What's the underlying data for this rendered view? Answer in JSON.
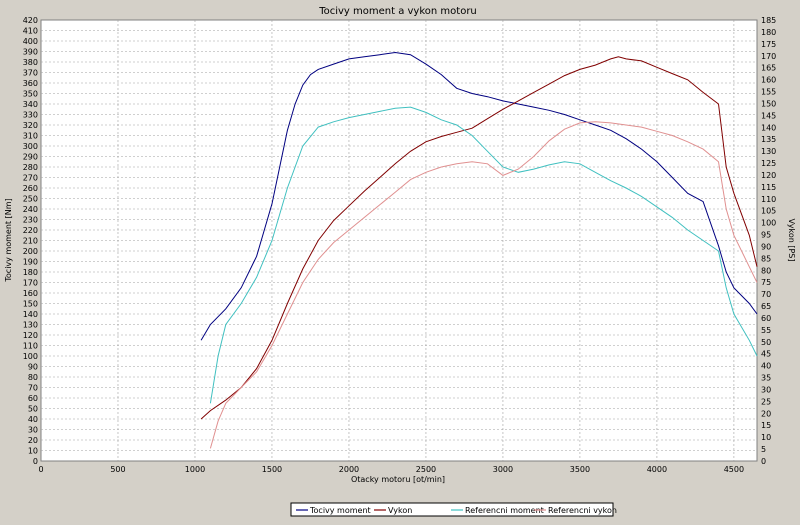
{
  "chart_data": {
    "type": "line",
    "title": "Tocivy moment a vykon motoru",
    "xlabel": "Otacky motoru [ot/min]",
    "ylabel_left": "Tocivy moment [Nm]",
    "ylabel_right": "Vykon [PS]",
    "xlim": [
      0,
      4650
    ],
    "ylim_left": [
      0,
      420
    ],
    "ylim_right": [
      0,
      185
    ],
    "x_ticks": [
      0,
      500,
      1000,
      1500,
      2000,
      2500,
      3000,
      3500,
      4000,
      4500
    ],
    "y_left_ticks": [
      0,
      10,
      20,
      30,
      40,
      50,
      60,
      70,
      80,
      90,
      100,
      110,
      120,
      130,
      140,
      150,
      160,
      170,
      180,
      190,
      200,
      210,
      220,
      230,
      240,
      250,
      260,
      270,
      280,
      290,
      300,
      310,
      320,
      330,
      340,
      350,
      360,
      370,
      380,
      390,
      400,
      410,
      420
    ],
    "y_right_ticks": [
      0,
      5,
      10,
      15,
      20,
      25,
      30,
      35,
      40,
      45,
      50,
      55,
      60,
      65,
      70,
      75,
      80,
      85,
      90,
      95,
      100,
      105,
      110,
      115,
      120,
      125,
      130,
      135,
      140,
      145,
      150,
      155,
      160,
      165,
      170,
      175,
      180,
      185
    ],
    "grid": true,
    "legend_position": "bottom-center",
    "series": [
      {
        "name": "Tocivy moment",
        "axis": "left",
        "color": "#000080",
        "x": [
          1040,
          1100,
          1200,
          1300,
          1400,
          1500,
          1550,
          1600,
          1650,
          1700,
          1750,
          1800,
          1900,
          2000,
          2100,
          2200,
          2300,
          2400,
          2500,
          2600,
          2700,
          2800,
          2900,
          3000,
          3100,
          3200,
          3300,
          3400,
          3500,
          3600,
          3700,
          3800,
          3900,
          4000,
          4100,
          4200,
          4300,
          4400,
          4450,
          4500,
          4600,
          4650
        ],
        "y": [
          115,
          130,
          145,
          165,
          195,
          245,
          280,
          315,
          340,
          358,
          368,
          373,
          378,
          383,
          385,
          387,
          389,
          387,
          378,
          368,
          355,
          350,
          347,
          343,
          340,
          337,
          334,
          330,
          325,
          320,
          315,
          307,
          297,
          285,
          270,
          255,
          247,
          205,
          180,
          165,
          150,
          140
        ]
      },
      {
        "name": "Vykon",
        "axis": "left",
        "color": "#800000",
        "x": [
          1040,
          1100,
          1200,
          1300,
          1400,
          1500,
          1600,
          1700,
          1800,
          1900,
          2000,
          2100,
          2200,
          2300,
          2400,
          2500,
          2600,
          2700,
          2800,
          2900,
          3000,
          3100,
          3200,
          3300,
          3400,
          3500,
          3600,
          3700,
          3750,
          3800,
          3900,
          4000,
          4100,
          4200,
          4300,
          4400,
          4450,
          4500,
          4600,
          4650
        ],
        "y": [
          40,
          48,
          58,
          70,
          88,
          115,
          150,
          183,
          210,
          229,
          243,
          257,
          270,
          283,
          295,
          304,
          309,
          313,
          317,
          326,
          335,
          343,
          351,
          359,
          367,
          373,
          377,
          383,
          385,
          383,
          381,
          375,
          369,
          363,
          351,
          340,
          280,
          255,
          215,
          185
        ]
      },
      {
        "name": "Referencni moment",
        "axis": "left",
        "color": "#40c0c0",
        "x": [
          1100,
          1150,
          1200,
          1300,
          1400,
          1500,
          1600,
          1700,
          1800,
          1900,
          2000,
          2100,
          2200,
          2300,
          2400,
          2500,
          2600,
          2700,
          2800,
          2900,
          3000,
          3100,
          3200,
          3300,
          3400,
          3500,
          3600,
          3700,
          3800,
          3900,
          4000,
          4100,
          4200,
          4300,
          4400,
          4450,
          4500,
          4600,
          4650
        ],
        "y": [
          55,
          100,
          130,
          150,
          175,
          210,
          260,
          300,
          318,
          323,
          327,
          330,
          333,
          336,
          337,
          332,
          325,
          320,
          310,
          295,
          280,
          275,
          278,
          282,
          285,
          283,
          275,
          267,
          260,
          252,
          242,
          232,
          220,
          210,
          200,
          165,
          140,
          115,
          100
        ]
      },
      {
        "name": "Referencni vykon",
        "axis": "left",
        "color": "#e09090",
        "x": [
          1100,
          1150,
          1200,
          1300,
          1400,
          1500,
          1600,
          1700,
          1800,
          1900,
          2000,
          2100,
          2200,
          2300,
          2400,
          2500,
          2600,
          2700,
          2800,
          2900,
          3000,
          3100,
          3200,
          3300,
          3400,
          3500,
          3600,
          3700,
          3800,
          3900,
          4000,
          4100,
          4200,
          4300,
          4400,
          4450,
          4500,
          4600,
          4650
        ],
        "y": [
          12,
          38,
          55,
          70,
          85,
          110,
          140,
          170,
          192,
          208,
          220,
          232,
          244,
          256,
          268,
          275,
          280,
          283,
          285,
          283,
          272,
          278,
          290,
          305,
          316,
          322,
          323,
          322,
          320,
          318,
          314,
          310,
          304,
          297,
          285,
          240,
          215,
          185,
          170
        ]
      }
    ]
  }
}
